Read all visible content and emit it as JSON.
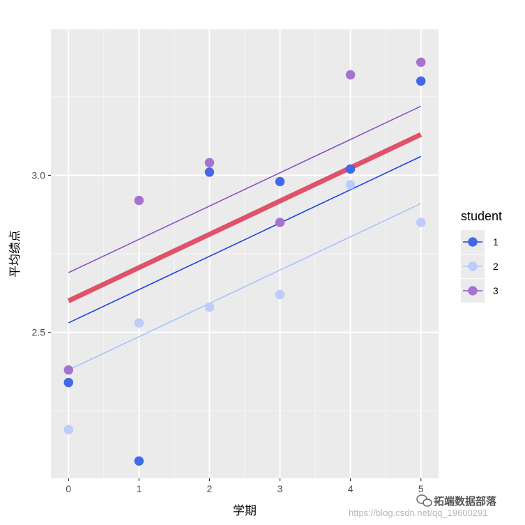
{
  "chart_data": {
    "type": "scatter",
    "xlabel": "学期",
    "ylabel": "平均绩点",
    "xlim": [
      -0.25,
      5.25
    ],
    "ylim": [
      2.035,
      3.465
    ],
    "x_ticks": [
      0,
      1,
      2,
      3,
      4,
      5
    ],
    "x_tick_labels": [
      "0",
      "1",
      "2",
      "3",
      "4",
      "5"
    ],
    "y_ticks": [
      2.5,
      3.0
    ],
    "y_tick_labels": [
      "2.5",
      "3.0"
    ],
    "y_minor_gridlines": [
      2.25,
      2.75,
      3.25
    ],
    "grid": true,
    "legend": {
      "title": "student",
      "position": "right",
      "entries": [
        {
          "label": "1",
          "color": "#1f45e0"
        },
        {
          "label": "2",
          "color": "#a9c2ff"
        },
        {
          "label": "3",
          "color": "#8b52c0"
        }
      ]
    },
    "series": [
      {
        "color": "#1f45e0",
        "point_color": "#4169e8",
        "points": [
          [
            0,
            2.34
          ],
          [
            1,
            2.09
          ],
          [
            2,
            3.01
          ],
          [
            3,
            2.98
          ],
          [
            4,
            3.02
          ],
          [
            5,
            3.3
          ]
        ],
        "line": {
          "x": [
            0,
            5
          ],
          "y": [
            2.53,
            3.06
          ]
        }
      },
      {
        "color": "#a9c2ff",
        "point_color": "#bccdfb",
        "points": [
          [
            0,
            2.19
          ],
          [
            1,
            2.53
          ],
          [
            2,
            2.58
          ],
          [
            3,
            2.62
          ],
          [
            4,
            2.97
          ],
          [
            5,
            2.85
          ]
        ],
        "line": {
          "x": [
            0,
            5
          ],
          "y": [
            2.38,
            2.91
          ]
        }
      },
      {
        "color": "#8b52c0",
        "point_color": "#a473d0",
        "points": [
          [
            0,
            2.38
          ],
          [
            1,
            2.92
          ],
          [
            2,
            3.04
          ],
          [
            3,
            2.85
          ],
          [
            4,
            3.32
          ],
          [
            5,
            3.36
          ]
        ],
        "line": {
          "x": [
            0,
            5
          ],
          "y": [
            2.69,
            3.22
          ]
        }
      }
    ],
    "overall_line": {
      "x": [
        0,
        5
      ],
      "y": [
        2.6,
        3.13
      ],
      "color": "#e0526a"
    }
  },
  "watermark": {
    "brand": "拓端数据部落",
    "url": "https://blog.csdn.net/qq_19600291"
  }
}
